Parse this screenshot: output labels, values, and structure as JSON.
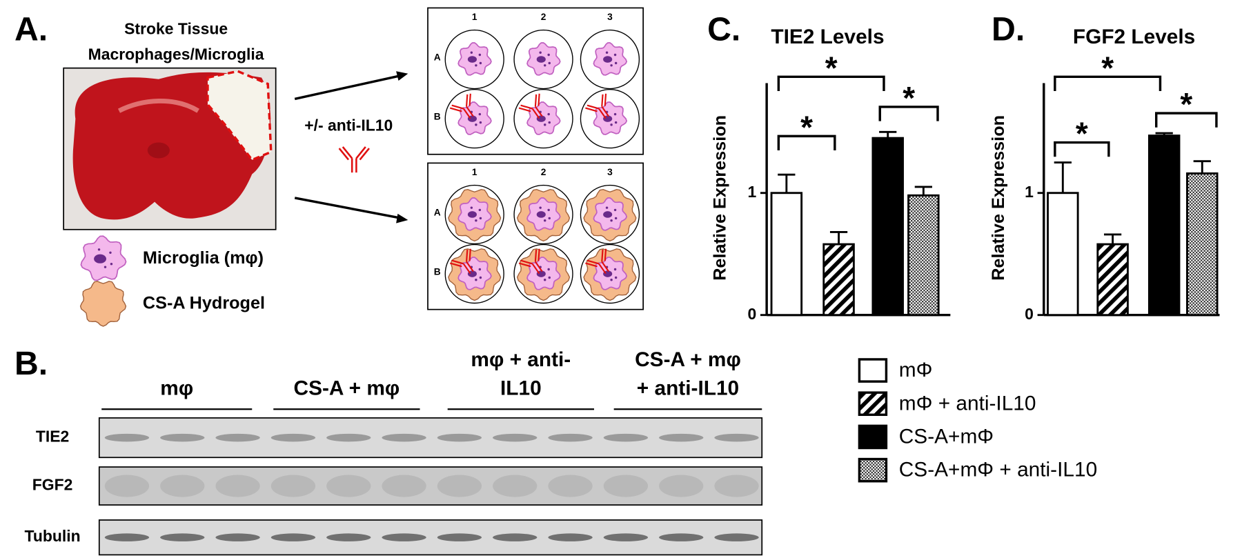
{
  "panel_a": {
    "label": "A.",
    "title_lines": [
      "Stroke Tissue",
      "Macrophages/Microglia"
    ],
    "treatment": "+/- anti-IL10",
    "plate_columns": [
      "1",
      "2",
      "3"
    ],
    "plate_rows": [
      "A",
      "B"
    ],
    "key": [
      {
        "label": "Microglia (mφ)"
      },
      {
        "label": "CS-A Hydrogel"
      }
    ]
  },
  "panel_b": {
    "label": "B.",
    "groups": [
      [
        "mφ"
      ],
      [
        "CS-A + mφ"
      ],
      [
        "mφ + anti-",
        "IL10"
      ],
      [
        "CS-A + mφ",
        "+  anti-IL10"
      ]
    ],
    "rows": [
      "TIE2",
      "FGF2",
      "Tubulin"
    ]
  },
  "chart_data": [
    {
      "type": "bar",
      "panel_label": "C.",
      "title": "TIE2 Levels",
      "y_label": "Relative  Expression",
      "values": [
        1.0,
        0.58,
        1.45,
        0.98
      ],
      "errors": [
        0.15,
        0.1,
        0.05,
        0.07
      ],
      "fills": [
        "white",
        "hatch",
        "black",
        "crosshatch"
      ],
      "ylim": [
        0,
        1.9
      ],
      "yticks": [
        0,
        1
      ],
      "annotations": [
        "*",
        "*",
        "*"
      ]
    },
    {
      "type": "bar",
      "panel_label": "D.",
      "title": "FGF2 Levels",
      "y_label": "Relative  Expression",
      "values": [
        1.0,
        0.58,
        1.47,
        1.16
      ],
      "errors": [
        0.25,
        0.08,
        0.02,
        0.1
      ],
      "fills": [
        "white",
        "hatch",
        "black",
        "crosshatch"
      ],
      "ylim": [
        0,
        1.9
      ],
      "yticks": [
        0,
        1
      ],
      "annotations": [
        "*",
        "*",
        "*"
      ]
    }
  ],
  "legend": {
    "items": [
      {
        "label": "mΦ",
        "fill": "white"
      },
      {
        "label": "mΦ + anti-IL10",
        "fill": "hatch"
      },
      {
        "label": "CS-A+mΦ",
        "fill": "black"
      },
      {
        "label": "CS-A+mΦ + anti-IL10",
        "fill": "crosshatch"
      }
    ]
  }
}
